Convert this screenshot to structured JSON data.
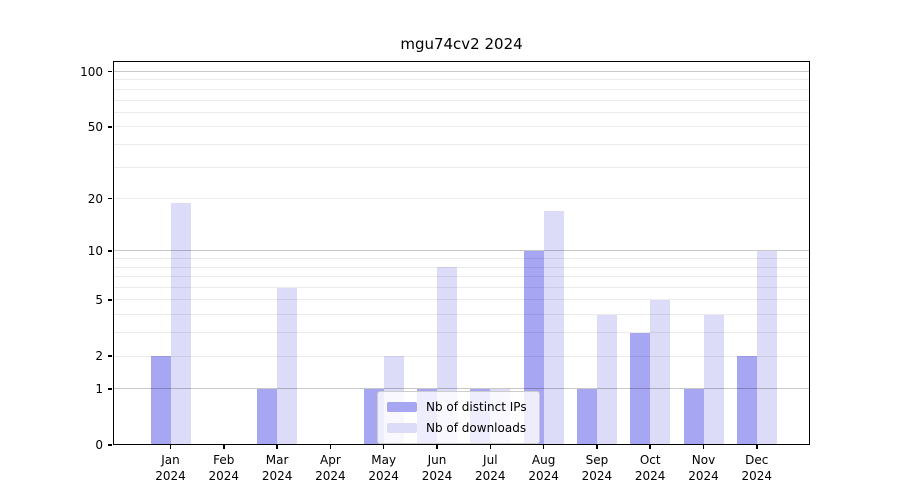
{
  "chart_data": {
    "type": "bar",
    "title": "mgu74cv2 2024",
    "categories": [
      "Jan",
      "Feb",
      "Mar",
      "Apr",
      "May",
      "Jun",
      "Jul",
      "Aug",
      "Sep",
      "Oct",
      "Nov",
      "Dec"
    ],
    "category_year": "2024",
    "series": [
      {
        "name": "Nb of distinct IPs",
        "color": "#a6a6f2",
        "values": [
          2,
          0,
          1,
          0,
          1,
          1,
          1,
          10,
          1,
          3,
          1,
          2
        ]
      },
      {
        "name": "Nb of downloads",
        "color": "#dcdcf8",
        "values": [
          19,
          0,
          6,
          0,
          2,
          8,
          1,
          17,
          4,
          5,
          4,
          10
        ]
      }
    ],
    "xlabel": "",
    "ylabel": "",
    "y_axis": {
      "scale": "log10(value+1)",
      "tick_values": [
        0,
        1,
        2,
        5,
        10,
        20,
        50,
        100
      ],
      "tick_labels": [
        "0",
        "1",
        "2",
        "5",
        "10",
        "20",
        "50",
        "100"
      ],
      "major_gridlines": [
        1,
        10,
        100
      ],
      "minor_gridlines": [
        2,
        3,
        4,
        5,
        6,
        7,
        8,
        9,
        20,
        30,
        40,
        50,
        60,
        70,
        80,
        90
      ],
      "ylim": [
        0,
        114
      ]
    },
    "grid": true,
    "legend_position": "inside-bottom-center"
  },
  "colors": {
    "background": "#ffffff",
    "axis": "#000000",
    "bar_distinct_ips": "#a6a6f2",
    "bar_downloads": "#dcdcf8",
    "major_grid": "rgba(0,0,0,0.22)",
    "minor_grid": "rgba(0,0,0,0.08)",
    "legend_border": "#cccccc",
    "legend_background": "rgba(255,255,255,0.8)",
    "text": "#000000"
  }
}
